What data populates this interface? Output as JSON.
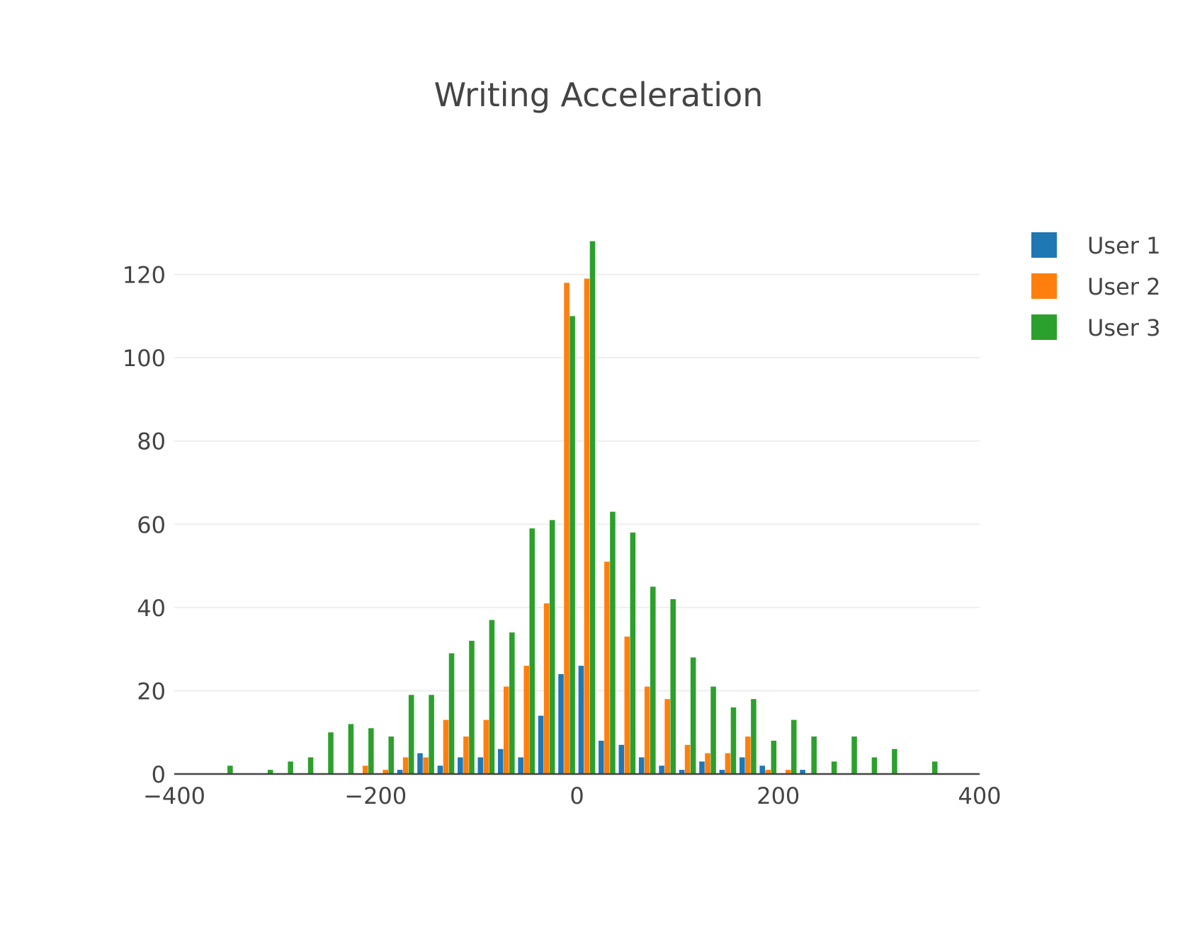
{
  "chart_data": {
    "type": "bar",
    "title": "Writing Acceleration",
    "xlabel": "",
    "ylabel": "",
    "xlim": [
      -400,
      400
    ],
    "ylim": [
      0,
      140
    ],
    "x_ticks": [
      -400,
      -200,
      0,
      200,
      400
    ],
    "x_tick_labels": [
      "−400",
      "−200",
      "0",
      "200",
      "400"
    ],
    "y_ticks": [
      0,
      20,
      40,
      60,
      80,
      100,
      120
    ],
    "y_tick_labels": [
      "0",
      "20",
      "40",
      "60",
      "80",
      "100",
      "120"
    ],
    "grid": true,
    "legend_position": "top-right",
    "bin_width": 20,
    "bin_centers": [
      -350,
      -330,
      -310,
      -290,
      -270,
      -250,
      -230,
      -210,
      -190,
      -170,
      -150,
      -130,
      -110,
      -90,
      -70,
      -50,
      -30,
      -10,
      10,
      30,
      50,
      70,
      90,
      110,
      130,
      150,
      170,
      190,
      210,
      230,
      250,
      270,
      290,
      310,
      330,
      350
    ],
    "series": [
      {
        "name": "User 1",
        "color": "#1f77b4",
        "values": [
          0,
          0,
          0,
          0,
          0,
          0,
          0,
          0,
          0,
          1,
          5,
          2,
          4,
          4,
          6,
          4,
          14,
          24,
          26,
          8,
          7,
          4,
          2,
          1,
          3,
          1,
          4,
          2,
          0,
          1,
          0,
          0,
          0,
          0,
          0,
          0
        ]
      },
      {
        "name": "User 2",
        "color": "#ff7f0e",
        "values": [
          0,
          0,
          0,
          0,
          0,
          0,
          0,
          2,
          1,
          4,
          4,
          13,
          9,
          13,
          21,
          26,
          41,
          118,
          119,
          51,
          33,
          21,
          18,
          7,
          5,
          5,
          9,
          1,
          1,
          0,
          0,
          0,
          0,
          0,
          0,
          0
        ]
      },
      {
        "name": "User 3",
        "color": "#2ca02c",
        "values": [
          2,
          0,
          1,
          3,
          4,
          10,
          12,
          11,
          9,
          19,
          19,
          29,
          32,
          37,
          34,
          59,
          61,
          110,
          128,
          63,
          58,
          45,
          42,
          28,
          21,
          16,
          18,
          8,
          13,
          9,
          3,
          9,
          4,
          6,
          0,
          3
        ]
      }
    ]
  }
}
